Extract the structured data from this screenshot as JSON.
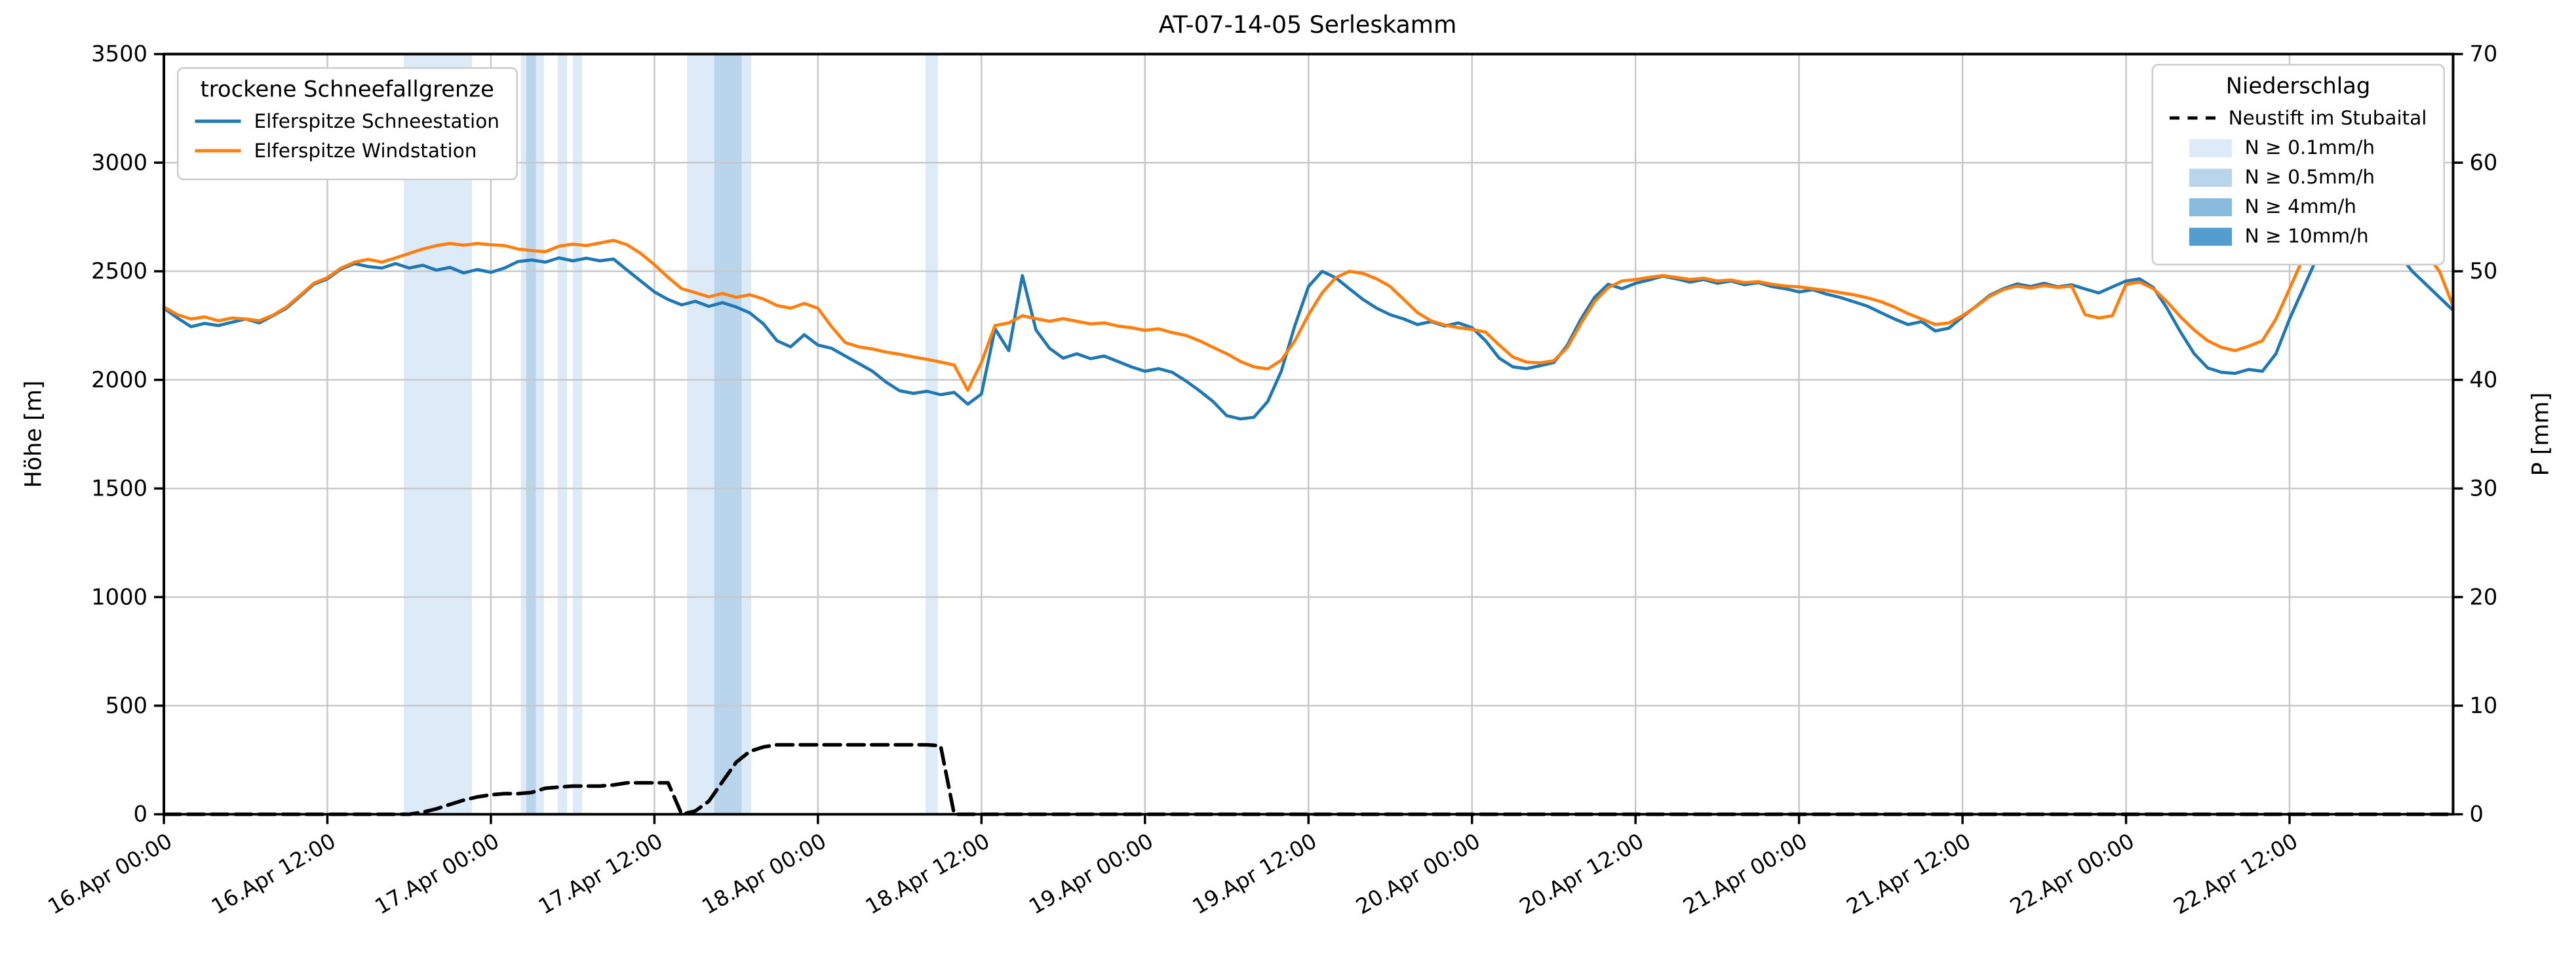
{
  "chart_data": {
    "type": "line",
    "title": "AT-07-14-05 Serleskamm",
    "x_unit": "hours since 16.Apr 00:00",
    "x_range": [
      0,
      168
    ],
    "x_step_hours": 1,
    "ylabel_left": "Höhe [m]",
    "ylim_left": [
      0,
      3500
    ],
    "ylabel_right": "P [mm]",
    "ylim_right": [
      0,
      70
    ],
    "grid": true,
    "y_ticks_left": [
      0,
      500,
      1000,
      1500,
      2000,
      2500,
      3000,
      3500
    ],
    "y_ticks_right": [
      0,
      10,
      20,
      30,
      40,
      50,
      60,
      70
    ],
    "x_ticks": [
      {
        "t": 0,
        "label": "16.Apr 00:00"
      },
      {
        "t": 12,
        "label": "16.Apr 12:00"
      },
      {
        "t": 24,
        "label": "17.Apr 00:00"
      },
      {
        "t": 36,
        "label": "17.Apr 12:00"
      },
      {
        "t": 48,
        "label": "18.Apr 00:00"
      },
      {
        "t": 60,
        "label": "18.Apr 12:00"
      },
      {
        "t": 72,
        "label": "19.Apr 00:00"
      },
      {
        "t": 84,
        "label": "19.Apr 12:00"
      },
      {
        "t": 96,
        "label": "20.Apr 00:00"
      },
      {
        "t": 108,
        "label": "20.Apr 12:00"
      },
      {
        "t": 120,
        "label": "21.Apr 00:00"
      },
      {
        "t": 132,
        "label": "21.Apr 12:00"
      },
      {
        "t": 144,
        "label": "22.Apr 00:00"
      },
      {
        "t": 156,
        "label": "22.Apr 12:00"
      }
    ],
    "legend_left": {
      "title": "trockene Schneefallgrenze",
      "position": "upper left"
    },
    "legend_right": {
      "title": "Niederschlag",
      "position": "upper right"
    },
    "series": [
      {
        "name": "Elferspitze Schneestation",
        "color": "#1f77b4",
        "axis": "left",
        "style": "solid",
        "values": [
          2330,
          2285,
          2245,
          2260,
          2250,
          2265,
          2280,
          2262,
          2295,
          2330,
          2385,
          2440,
          2465,
          2510,
          2535,
          2522,
          2515,
          2535,
          2515,
          2528,
          2505,
          2518,
          2492,
          2508,
          2495,
          2515,
          2545,
          2552,
          2542,
          2562,
          2548,
          2560,
          2548,
          2556,
          2505,
          2455,
          2405,
          2370,
          2345,
          2362,
          2338,
          2356,
          2335,
          2308,
          2258,
          2180,
          2152,
          2208,
          2160,
          2145,
          2110,
          2075,
          2040,
          1990,
          1950,
          1938,
          1948,
          1932,
          1942,
          1888,
          1935,
          2235,
          2135,
          2480,
          2230,
          2145,
          2100,
          2120,
          2098,
          2110,
          2085,
          2060,
          2040,
          2052,
          2035,
          1995,
          1950,
          1900,
          1835,
          1820,
          1828,
          1900,
          2040,
          2250,
          2430,
          2500,
          2470,
          2420,
          2370,
          2330,
          2300,
          2280,
          2255,
          2268,
          2248,
          2262,
          2240,
          2180,
          2100,
          2060,
          2052,
          2065,
          2080,
          2160,
          2280,
          2380,
          2440,
          2420,
          2445,
          2460,
          2478,
          2465,
          2450,
          2462,
          2445,
          2455,
          2438,
          2448,
          2430,
          2420,
          2405,
          2415,
          2395,
          2380,
          2360,
          2340,
          2310,
          2280,
          2255,
          2268,
          2225,
          2238,
          2290,
          2340,
          2390,
          2420,
          2442,
          2430,
          2445,
          2428,
          2438,
          2418,
          2400,
          2428,
          2455,
          2465,
          2425,
          2330,
          2220,
          2120,
          2055,
          2035,
          2030,
          2048,
          2040,
          2120,
          2280,
          2420,
          2560,
          2660,
          2760,
          2820,
          2770,
          2680,
          2580,
          2500,
          2440,
          2380,
          2320
        ]
      },
      {
        "name": "Elferspitze Windstation",
        "color": "#ff7f0e",
        "axis": "left",
        "style": "solid",
        "values": [
          2335,
          2300,
          2280,
          2290,
          2272,
          2285,
          2280,
          2272,
          2298,
          2335,
          2390,
          2445,
          2470,
          2515,
          2542,
          2555,
          2542,
          2562,
          2582,
          2602,
          2618,
          2628,
          2620,
          2628,
          2622,
          2618,
          2602,
          2595,
          2590,
          2615,
          2625,
          2618,
          2630,
          2642,
          2622,
          2582,
          2530,
          2472,
          2420,
          2402,
          2382,
          2398,
          2380,
          2392,
          2372,
          2342,
          2330,
          2352,
          2330,
          2245,
          2172,
          2152,
          2142,
          2128,
          2118,
          2105,
          2095,
          2082,
          2068,
          1952,
          2080,
          2250,
          2262,
          2295,
          2282,
          2270,
          2282,
          2270,
          2258,
          2262,
          2248,
          2240,
          2228,
          2235,
          2218,
          2205,
          2180,
          2150,
          2120,
          2085,
          2060,
          2050,
          2090,
          2180,
          2300,
          2400,
          2470,
          2500,
          2490,
          2465,
          2430,
          2370,
          2310,
          2272,
          2252,
          2240,
          2232,
          2220,
          2160,
          2105,
          2082,
          2078,
          2088,
          2150,
          2260,
          2360,
          2425,
          2455,
          2462,
          2472,
          2480,
          2472,
          2462,
          2468,
          2455,
          2460,
          2448,
          2452,
          2440,
          2432,
          2428,
          2420,
          2412,
          2402,
          2392,
          2378,
          2360,
          2335,
          2305,
          2280,
          2255,
          2262,
          2295,
          2338,
          2385,
          2415,
          2432,
          2422,
          2435,
          2425,
          2432,
          2300,
          2285,
          2295,
          2440,
          2450,
          2420,
          2360,
          2290,
          2230,
          2180,
          2150,
          2135,
          2155,
          2180,
          2280,
          2420,
          2560,
          2650,
          2720,
          2762,
          2780,
          2755,
          2725,
          2680,
          2630,
          2580,
          2500,
          2340
        ]
      },
      {
        "name": "Neustift im Stubaital",
        "color": "#000000",
        "axis": "right",
        "style": "dashed",
        "values": [
          0,
          0,
          0,
          0,
          0,
          0,
          0,
          0,
          0,
          0,
          0,
          0,
          0,
          0,
          0,
          0,
          0,
          0,
          0,
          0.2,
          0.5,
          0.9,
          1.3,
          1.6,
          1.8,
          1.9,
          1.9,
          2.0,
          2.4,
          2.5,
          2.6,
          2.6,
          2.6,
          2.7,
          2.9,
          2.9,
          2.9,
          2.9,
          0,
          0.3,
          1.2,
          3.0,
          4.8,
          5.8,
          6.2,
          6.4,
          6.4,
          6.4,
          6.4,
          6.4,
          6.4,
          6.4,
          6.4,
          6.4,
          6.4,
          6.4,
          6.4,
          6.3,
          0,
          0,
          0,
          0,
          0,
          0,
          0,
          0,
          0,
          0,
          0,
          0,
          0,
          0,
          0,
          0,
          0,
          0,
          0,
          0,
          0,
          0,
          0,
          0,
          0,
          0,
          0,
          0,
          0,
          0,
          0,
          0,
          0,
          0,
          0,
          0,
          0,
          0,
          0,
          0,
          0,
          0,
          0,
          0,
          0,
          0,
          0,
          0,
          0,
          0,
          0,
          0,
          0,
          0,
          0,
          0,
          0,
          0,
          0,
          0,
          0,
          0,
          0,
          0,
          0,
          0,
          0,
          0,
          0,
          0,
          0,
          0,
          0,
          0,
          0,
          0,
          0,
          0,
          0,
          0,
          0,
          0,
          0,
          0,
          0,
          0,
          0,
          0,
          0,
          0,
          0,
          0,
          0,
          0,
          0,
          0,
          0,
          0,
          0,
          0,
          0,
          0,
          0,
          0,
          0,
          0,
          0,
          0,
          0,
          0,
          0
        ]
      }
    ],
    "precip_bands": {
      "legend": [
        {
          "label": "N ≥ 0.1mm/h",
          "color": "#dcebf7"
        },
        {
          "label": "N ≥ 0.5mm/h",
          "color": "#b8d5ec"
        },
        {
          "label": "N ≥ 4mm/h",
          "color": "#88bbde"
        },
        {
          "label": "N ≥ 10mm/h",
          "color": "#549dd1"
        }
      ],
      "intervals": [
        {
          "start": 17.6,
          "end": 22.6,
          "level": "N ≥ 0.1mm/h"
        },
        {
          "start": 26.2,
          "end": 27.9,
          "level": "N ≥ 0.1mm/h"
        },
        {
          "start": 26.6,
          "end": 27.3,
          "level": "N ≥ 0.5mm/h"
        },
        {
          "start": 28.9,
          "end": 29.6,
          "level": "N ≥ 0.1mm/h"
        },
        {
          "start": 30.0,
          "end": 30.7,
          "level": "N ≥ 0.1mm/h"
        },
        {
          "start": 38.4,
          "end": 43.1,
          "level": "N ≥ 0.1mm/h"
        },
        {
          "start": 40.4,
          "end": 42.4,
          "level": "N ≥ 0.5mm/h"
        },
        {
          "start": 55.9,
          "end": 56.8,
          "level": "N ≥ 0.1mm/h"
        }
      ]
    }
  }
}
